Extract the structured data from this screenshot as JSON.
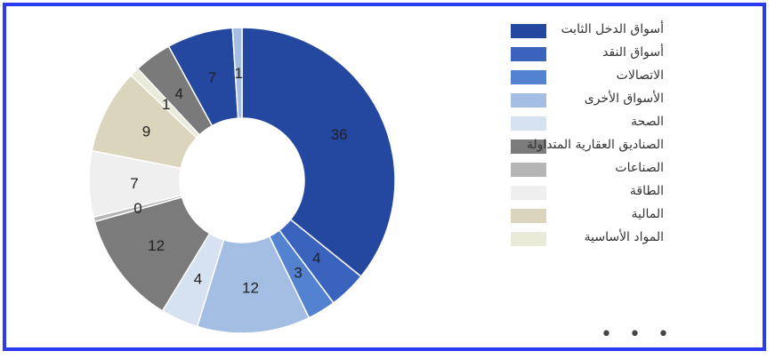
{
  "chart_data": {
    "type": "donut",
    "slices": [
      {
        "label": "أسواق الدخل الثابت",
        "value": 36,
        "display": "36",
        "color": "#2447a0"
      },
      {
        "label": "أسواق النقد",
        "value": 4,
        "display": "4",
        "color": "#3a63bd"
      },
      {
        "label": "الاتصالات",
        "value": 3,
        "display": "3",
        "color": "#5282d0"
      },
      {
        "label": "الأسواق الأخرى",
        "value": 12,
        "display": "12",
        "color": "#a3bde3"
      },
      {
        "label": "الصحة",
        "value": 4,
        "display": "4",
        "color": "#d6e1f1"
      },
      {
        "label": "الصناديق العقارية المتداولة",
        "value": 12,
        "display": "12",
        "color": "#7b7b7b"
      },
      {
        "label": "الصناعات",
        "value": 0.5,
        "display": "0",
        "color": "#b5b5b5"
      },
      {
        "label": "الطاقة",
        "value": 7,
        "display": "7",
        "color": "#efefef"
      },
      {
        "label": "المالية",
        "value": 9,
        "display": "9",
        "color": "#dcd5bd"
      },
      {
        "label": "المواد الأساسية",
        "value": 1,
        "display": "1",
        "color": "#e9ead8"
      },
      {
        "label": "",
        "value": 4,
        "display": "4",
        "color": "#7a7a7a"
      },
      {
        "label": "",
        "value": 7,
        "display": "7",
        "color": "#2447a0"
      },
      {
        "label": "",
        "value": 1,
        "display": "1",
        "color": "#a3bde3"
      }
    ],
    "legend_position": "right"
  },
  "legend": {
    "more_indicator": "• • •"
  }
}
